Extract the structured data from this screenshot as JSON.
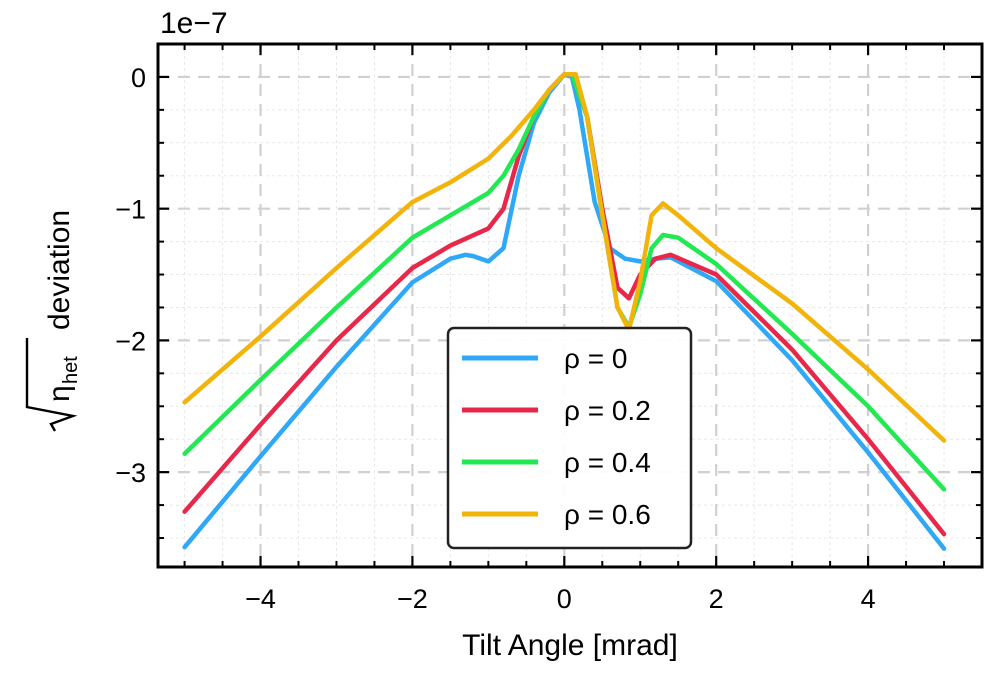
{
  "chart_data": {
    "type": "line",
    "title": "",
    "xlabel": "Tilt Angle [mrad]",
    "ylabel_root_symbol": "η",
    "ylabel_subscript": "het",
    "ylabel_suffix": "deviation",
    "offset_label": "1e−7",
    "xlim": [
      -5.35,
      5.5
    ],
    "ylim": [
      -3.72,
      0.25
    ],
    "xticks": [
      -4,
      -2,
      0,
      2,
      4
    ],
    "xtick_labels": [
      "−4",
      "−2",
      "0",
      "2",
      "4"
    ],
    "yticks": [
      0,
      -1,
      -2,
      -3
    ],
    "ytick_labels": [
      "0",
      "−1",
      "−2",
      "−3"
    ],
    "grid": true,
    "legend_position": "lower-center",
    "series": [
      {
        "name": "ρ = 0",
        "color": "#2ea8f7",
        "x": [
          -5,
          -4,
          -3,
          -2,
          -1.5,
          -1.3,
          -1.2,
          -1.0,
          -0.8,
          -0.6,
          -0.4,
          -0.2,
          0,
          0.1,
          0.2,
          0.4,
          0.6,
          0.8,
          1.0,
          1.2,
          1.4,
          2,
          3,
          4,
          5
        ],
        "y": [
          -3.57,
          -2.88,
          -2.2,
          -1.56,
          -1.38,
          -1.35,
          -1.36,
          -1.4,
          -1.3,
          -0.75,
          -0.35,
          -0.12,
          0.02,
          0.0,
          -0.25,
          -0.95,
          -1.3,
          -1.38,
          -1.4,
          -1.38,
          -1.37,
          -1.55,
          -2.15,
          -2.85,
          -3.58
        ]
      },
      {
        "name": "ρ = 0.2",
        "color": "#e8284a",
        "x": [
          -5,
          -4,
          -3,
          -2,
          -1.5,
          -1.0,
          -0.8,
          -0.6,
          -0.4,
          -0.2,
          0,
          0.1,
          0.3,
          0.5,
          0.7,
          0.85,
          1.0,
          1.2,
          1.4,
          2,
          3,
          4,
          5
        ],
        "y": [
          -3.3,
          -2.64,
          -2.0,
          -1.45,
          -1.28,
          -1.15,
          -1.0,
          -0.6,
          -0.3,
          -0.1,
          0.02,
          0.02,
          -0.3,
          -1.0,
          -1.6,
          -1.68,
          -1.5,
          -1.38,
          -1.35,
          -1.5,
          -2.07,
          -2.75,
          -3.47
        ]
      },
      {
        "name": "ρ = 0.4",
        "color": "#22e852",
        "x": [
          -5,
          -4,
          -3,
          -2,
          -1.5,
          -1.0,
          -0.8,
          -0.6,
          -0.4,
          -0.2,
          0,
          0.1,
          0.3,
          0.5,
          0.7,
          0.85,
          1.0,
          1.15,
          1.3,
          1.5,
          2,
          3,
          4,
          5
        ],
        "y": [
          -2.86,
          -2.3,
          -1.75,
          -1.22,
          -1.05,
          -0.88,
          -0.75,
          -0.55,
          -0.3,
          -0.1,
          0.02,
          0.02,
          -0.3,
          -1.05,
          -1.75,
          -1.9,
          -1.65,
          -1.3,
          -1.2,
          -1.22,
          -1.42,
          -1.95,
          -2.5,
          -3.13
        ]
      },
      {
        "name": "ρ = 0.6",
        "color": "#f2b30a",
        "x": [
          -5,
          -4,
          -3,
          -2,
          -1.5,
          -1.0,
          -0.7,
          -0.4,
          -0.2,
          0,
          0.15,
          0.3,
          0.5,
          0.7,
          0.85,
          1.0,
          1.15,
          1.3,
          1.5,
          2,
          3,
          4,
          5
        ],
        "y": [
          -2.47,
          -1.97,
          -1.45,
          -0.95,
          -0.8,
          -0.62,
          -0.45,
          -0.25,
          -0.1,
          0.02,
          0.02,
          -0.3,
          -1.05,
          -1.75,
          -1.92,
          -1.55,
          -1.05,
          -0.96,
          -1.05,
          -1.3,
          -1.72,
          -2.22,
          -2.76
        ]
      }
    ]
  }
}
